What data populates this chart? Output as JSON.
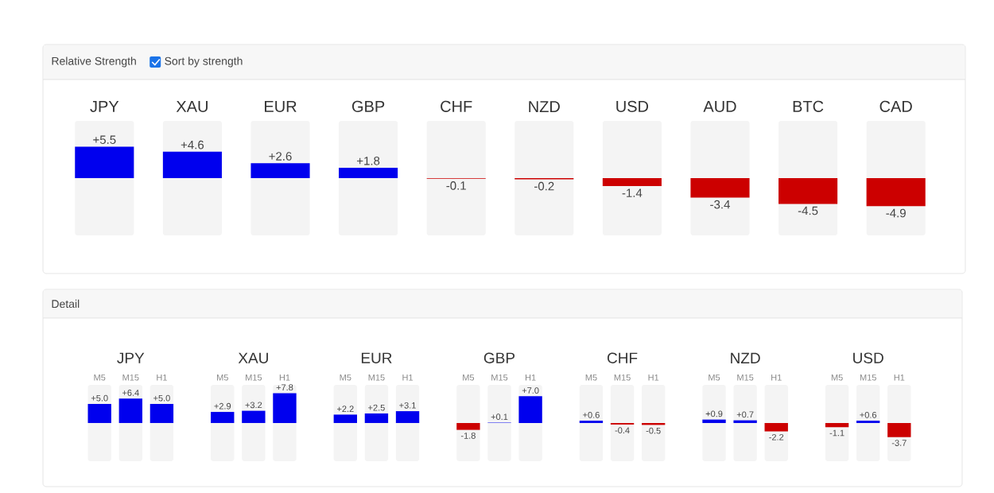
{
  "chart_data": [
    {
      "type": "bar",
      "title": "Relative Strength",
      "annotations": [
        "Sort by strength"
      ],
      "categories": [
        "JPY",
        "XAU",
        "EUR",
        "GBP",
        "CHF",
        "NZD",
        "USD",
        "AUD",
        "BTC",
        "CAD"
      ],
      "values": [
        5.5,
        4.6,
        2.6,
        1.8,
        -0.1,
        -0.2,
        -1.4,
        -3.4,
        -4.5,
        -4.9
      ],
      "value_labels": [
        "+5.5",
        "+4.6",
        "+2.6",
        "+1.8",
        "-0.1",
        "-0.2",
        "-1.4",
        "-3.4",
        "-4.5",
        "-4.9"
      ],
      "colors": [
        "#0000ee",
        "#0000ee",
        "#0000ee",
        "#0000ee",
        "#cc0000",
        "#cc0000",
        "#cc0000",
        "#cc0000",
        "#cc0000",
        "#cc0000"
      ],
      "ylim": [
        -10,
        10
      ],
      "tick_labels": "x"
    },
    {
      "type": "bar",
      "title": "Detail",
      "categories": [
        "JPY",
        "XAU",
        "EUR",
        "GBP",
        "CHF",
        "NZD",
        "USD"
      ],
      "series": [
        {
          "name": "M5",
          "values": [
            5.0,
            2.9,
            2.2,
            -1.8,
            0.6,
            0.9,
            -1.1
          ],
          "value_labels": [
            "+5.0",
            "+2.9",
            "+2.2",
            "-1.8",
            "+0.6",
            "+0.9",
            "-1.1"
          ],
          "colors": [
            "#0000ee",
            "#0000ee",
            "#0000ee",
            "#cc0000",
            "#0000ee",
            "#0000ee",
            "#cc0000"
          ]
        },
        {
          "name": "M15",
          "values": [
            6.4,
            3.2,
            2.5,
            0.1,
            -0.4,
            0.7,
            0.6
          ],
          "value_labels": [
            "+6.4",
            "+3.2",
            "+2.5",
            "+0.1",
            "-0.4",
            "+0.7",
            "+0.6"
          ],
          "colors": [
            "#0000ee",
            "#0000ee",
            "#0000ee",
            "#0000ee",
            "#cc0000",
            "#0000ee",
            "#0000ee"
          ]
        },
        {
          "name": "H1",
          "values": [
            5.0,
            7.8,
            3.1,
            7.0,
            -0.5,
            -2.2,
            -3.7
          ],
          "value_labels": [
            "+5.0",
            "+7.8",
            "+3.1",
            "+7.0",
            "-0.5",
            "-2.2",
            "-3.7"
          ],
          "colors": [
            "#0000ee",
            "#0000ee",
            "#0000ee",
            "#0000ee",
            "#cc0000",
            "#cc0000",
            "#cc0000"
          ]
        }
      ],
      "ylim": [
        -10,
        10
      ],
      "tick_labels": "x"
    }
  ]
}
